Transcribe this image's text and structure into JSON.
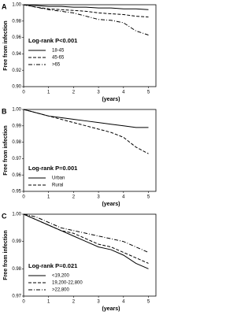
{
  "chart_data": [
    {
      "type": "line",
      "panel": "A",
      "y_label": "Free from infection",
      "x_label": "(years)",
      "annotation": "Log-rank P<0.001",
      "x": [
        0,
        0.5,
        1,
        1.5,
        2,
        2.5,
        3,
        3.5,
        4,
        4.5,
        5
      ],
      "series": [
        {
          "name": "18-45",
          "color": "#000000",
          "dash": "solid",
          "values": [
            1.0,
            0.999,
            0.998,
            0.998,
            0.997,
            0.997,
            0.996,
            0.996,
            0.995,
            0.995,
            0.994
          ]
        },
        {
          "name": "45-65",
          "color": "#000000",
          "dash": "dashed",
          "values": [
            1.0,
            0.997,
            0.995,
            0.994,
            0.993,
            0.992,
            0.99,
            0.989,
            0.988,
            0.986,
            0.985
          ]
        },
        {
          "name": ">65",
          "color": "#000000",
          "dash": "dashdot",
          "values": [
            1.0,
            0.997,
            0.994,
            0.992,
            0.99,
            0.986,
            0.982,
            0.981,
            0.978,
            0.968,
            0.963
          ]
        }
      ],
      "xlim": [
        0,
        5.3
      ],
      "xticks": [
        0,
        1,
        2,
        3,
        4,
        5
      ],
      "ylim": [
        0.9,
        1.0
      ],
      "yticks": [
        {
          "value": 0.9,
          "label": "0.90"
        },
        {
          "value": 0.92,
          "label": "0.92"
        },
        {
          "value": 0.94,
          "label": "0.94"
        },
        {
          "value": 0.96,
          "label": "0.96"
        },
        {
          "value": 0.98,
          "label": "0.98"
        },
        {
          "value": 1.0,
          "label": "1.00"
        }
      ],
      "legend": "center left"
    },
    {
      "type": "line",
      "panel": "B",
      "y_label": "Free from infection",
      "x_label": "(years)",
      "annotation": "Log-rank P=0.001",
      "x": [
        0,
        0.5,
        1,
        1.5,
        2,
        2.5,
        3,
        3.5,
        4,
        4.5,
        5
      ],
      "series": [
        {
          "name": "Urban",
          "color": "#000000",
          "dash": "solid",
          "values": [
            1.0,
            0.998,
            0.996,
            0.995,
            0.994,
            0.993,
            0.992,
            0.991,
            0.99,
            0.989,
            0.989
          ]
        },
        {
          "name": "Rural",
          "color": "#000000",
          "dash": "dashed",
          "values": [
            1.0,
            0.998,
            0.996,
            0.994,
            0.992,
            0.99,
            0.988,
            0.986,
            0.983,
            0.977,
            0.973
          ]
        }
      ],
      "xlim": [
        0,
        5.3
      ],
      "xticks": [
        0,
        1,
        2,
        3,
        4,
        5
      ],
      "ylim": [
        0.95,
        1.0
      ],
      "yticks": [
        0.95,
        0.96,
        0.97,
        0.98,
        0.99,
        {
          "value": 1.0,
          "label": "1.00"
        }
      ],
      "legend": "lower left"
    },
    {
      "type": "line",
      "panel": "C",
      "y_label": "Free from infection",
      "x_label": "(years)",
      "annotation": "Log-rank P=0.021",
      "x": [
        0,
        0.5,
        1,
        1.5,
        2,
        2.5,
        3,
        3.5,
        4,
        4.5,
        5
      ],
      "series": [
        {
          "name": "<19,200",
          "color": "#000000",
          "dash": "solid",
          "values": [
            1.0,
            0.998,
            0.996,
            0.994,
            0.992,
            0.99,
            0.988,
            0.987,
            0.985,
            0.982,
            0.98
          ]
        },
        {
          "name": "19,200-22,800",
          "color": "#000000",
          "dash": "dashed",
          "values": [
            1.0,
            0.998,
            0.996,
            0.994,
            0.993,
            0.991,
            0.989,
            0.988,
            0.986,
            0.984,
            0.982
          ]
        },
        {
          "name": ">22,800",
          "color": "#000000",
          "dash": "dashdot",
          "values": [
            1.0,
            0.999,
            0.997,
            0.995,
            0.994,
            0.993,
            0.992,
            0.991,
            0.99,
            0.988,
            0.986
          ]
        }
      ],
      "xlim": [
        0,
        5.3
      ],
      "xticks": [
        0,
        1,
        2,
        3,
        4,
        5
      ],
      "ylim": [
        0.97,
        1.0
      ],
      "yticks": [
        0.97,
        0.98,
        0.99,
        {
          "value": 1.0,
          "label": "1.00"
        }
      ],
      "legend": "lower left"
    }
  ]
}
